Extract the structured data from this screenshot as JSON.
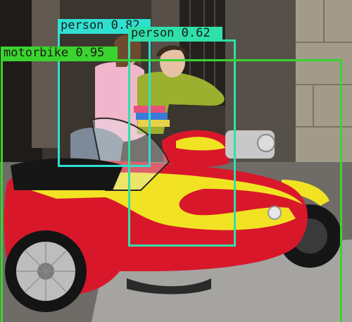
{
  "image": {
    "subject": "two women on a motorcycle with a sidecar"
  },
  "detections": [
    {
      "label": "person 0.82",
      "class": "person",
      "score": 0.82,
      "color": "#2fe0d0"
    },
    {
      "label": "person 0.62",
      "class": "person",
      "score": 0.62,
      "color": "#2fe0a8"
    },
    {
      "label": "motorbike 0.95",
      "class": "motorbike",
      "score": 0.95,
      "color": "#3ad42e"
    }
  ],
  "colors": {
    "sidecar_red": "#d8182a",
    "sidecar_yellow": "#f2e224",
    "stone_wall": "#8d8474",
    "pavement": "#9a9a98"
  }
}
